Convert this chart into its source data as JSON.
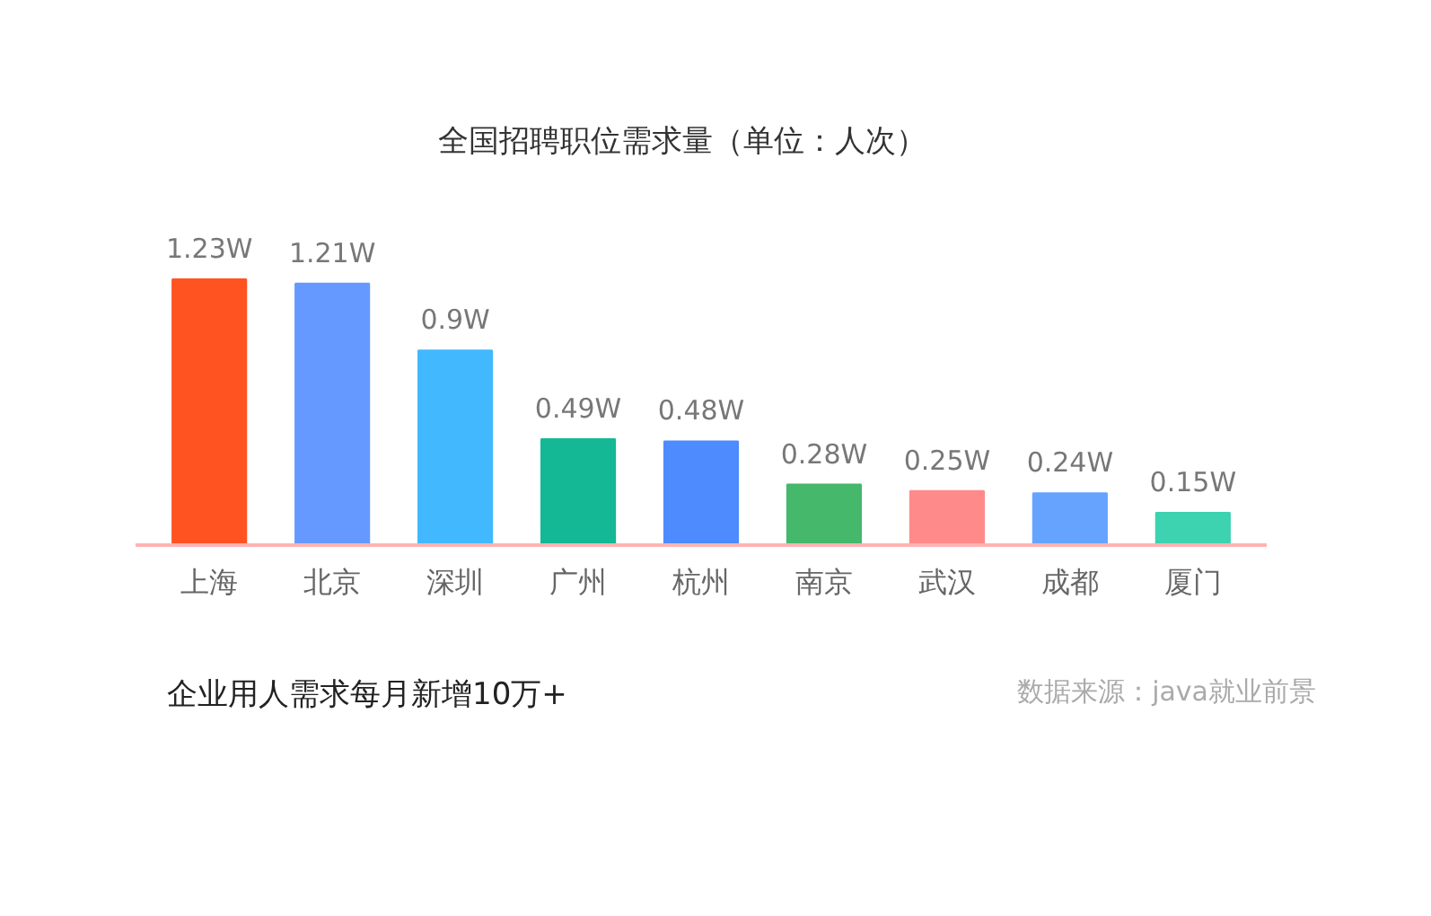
{
  "chart_data": {
    "type": "bar",
    "title": "全国招聘职位需求量（单位：人次）",
    "categories": [
      "上海",
      "北京",
      "深圳",
      "广州",
      "杭州",
      "南京",
      "武汉",
      "成都",
      "厦门"
    ],
    "values": [
      1.23,
      1.21,
      0.9,
      0.49,
      0.48,
      0.28,
      0.25,
      0.24,
      0.15
    ],
    "value_labels": [
      "1.23W",
      "1.21W",
      "0.9W",
      "0.49W",
      "0.48W",
      "0.28W",
      "0.25W",
      "0.24W",
      "0.15W"
    ],
    "colors": [
      "#ff5322",
      "#6699ff",
      "#42b9ff",
      "#14b894",
      "#4d8bff",
      "#45b86b",
      "#ff8a8a",
      "#66a3ff",
      "#3dd2b0"
    ],
    "grid": false,
    "annotations": [
      "企业用人需求每月新增10万+",
      "数据来源：java就业前景"
    ]
  }
}
